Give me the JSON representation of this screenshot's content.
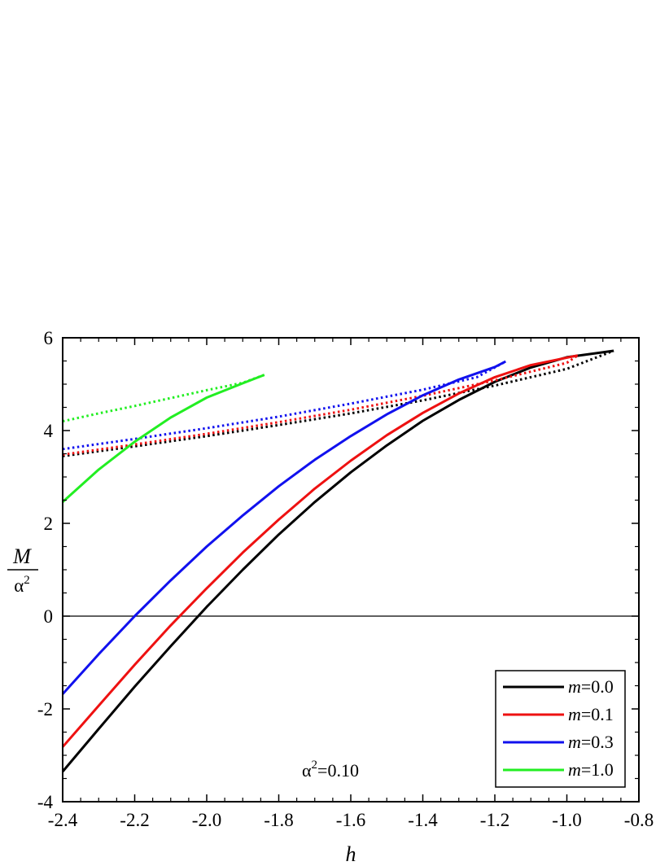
{
  "chart_data": {
    "type": "line",
    "xlabel": "h",
    "ylabel": {
      "numerator": "M",
      "denominator": "α",
      "denominator_sup": "2"
    },
    "xlim": [
      -2.4,
      -0.8
    ],
    "ylim": [
      -4,
      6
    ],
    "xticks": [
      -2.4,
      -2.2,
      -2.0,
      -1.8,
      -1.6,
      -1.4,
      -1.2,
      -1.0,
      -0.8
    ],
    "xtick_labels": [
      "-2.4",
      "-2.2",
      "-2.0",
      "-1.8",
      "-1.6",
      "-1.4",
      "-1.2",
      "-1.0",
      "-0.8"
    ],
    "yticks": [
      -4,
      -2,
      0,
      2,
      4,
      6
    ],
    "ytick_labels": [
      "-4",
      "-2",
      "0",
      "2",
      "4",
      "6"
    ],
    "reference_line_y": 0,
    "annotation": {
      "prefix": "α",
      "sup": "2",
      "suffix": "=0.10"
    },
    "legend_position": "bottom-right",
    "series": [
      {
        "name": "m=0.0",
        "name_italic": "m",
        "name_rest": "=0.0",
        "color": "#000000",
        "solid": [
          [
            -2.4,
            -3.35
          ],
          [
            -2.3,
            -2.43
          ],
          [
            -2.2,
            -1.52
          ],
          [
            -2.1,
            -0.65
          ],
          [
            -2.0,
            0.2
          ],
          [
            -1.9,
            1.0
          ],
          [
            -1.8,
            1.76
          ],
          [
            -1.7,
            2.46
          ],
          [
            -1.6,
            3.1
          ],
          [
            -1.5,
            3.68
          ],
          [
            -1.4,
            4.21
          ],
          [
            -1.3,
            4.66
          ],
          [
            -1.2,
            5.05
          ],
          [
            -1.1,
            5.36
          ],
          [
            -1.0,
            5.58
          ],
          [
            -0.87,
            5.72
          ]
        ],
        "dotted": [
          [
            -2.4,
            3.45
          ],
          [
            -2.2,
            3.66
          ],
          [
            -2.0,
            3.88
          ],
          [
            -1.8,
            4.12
          ],
          [
            -1.6,
            4.37
          ],
          [
            -1.4,
            4.65
          ],
          [
            -1.2,
            4.97
          ],
          [
            -1.0,
            5.33
          ],
          [
            -0.87,
            5.72
          ]
        ]
      },
      {
        "name": "m=0.1",
        "name_italic": "m",
        "name_rest": "=0.1",
        "color": "#ee1111",
        "solid": [
          [
            -2.4,
            -2.82
          ],
          [
            -2.3,
            -1.93
          ],
          [
            -2.2,
            -1.05
          ],
          [
            -2.1,
            -0.2
          ],
          [
            -2.0,
            0.6
          ],
          [
            -1.9,
            1.37
          ],
          [
            -1.8,
            2.08
          ],
          [
            -1.7,
            2.75
          ],
          [
            -1.6,
            3.35
          ],
          [
            -1.5,
            3.9
          ],
          [
            -1.4,
            4.38
          ],
          [
            -1.3,
            4.8
          ],
          [
            -1.2,
            5.15
          ],
          [
            -1.1,
            5.41
          ],
          [
            -0.97,
            5.62
          ]
        ],
        "dotted": [
          [
            -2.4,
            3.48
          ],
          [
            -2.2,
            3.7
          ],
          [
            -2.0,
            3.93
          ],
          [
            -1.8,
            4.18
          ],
          [
            -1.6,
            4.45
          ],
          [
            -1.4,
            4.75
          ],
          [
            -1.2,
            5.08
          ],
          [
            -1.0,
            5.46
          ],
          [
            -0.97,
            5.62
          ]
        ]
      },
      {
        "name": "m=0.3",
        "name_italic": "m",
        "name_rest": "=0.3",
        "color": "#1111ee",
        "solid": [
          [
            -2.4,
            -1.68
          ],
          [
            -2.3,
            -0.82
          ],
          [
            -2.2,
            0.0
          ],
          [
            -2.1,
            0.77
          ],
          [
            -2.0,
            1.5
          ],
          [
            -1.9,
            2.17
          ],
          [
            -1.8,
            2.8
          ],
          [
            -1.7,
            3.37
          ],
          [
            -1.6,
            3.88
          ],
          [
            -1.5,
            4.35
          ],
          [
            -1.4,
            4.76
          ],
          [
            -1.3,
            5.1
          ],
          [
            -1.2,
            5.37
          ],
          [
            -1.17,
            5.49
          ]
        ],
        "dotted": [
          [
            -2.4,
            3.6
          ],
          [
            -2.2,
            3.82
          ],
          [
            -2.0,
            4.05
          ],
          [
            -1.8,
            4.3
          ],
          [
            -1.6,
            4.58
          ],
          [
            -1.4,
            4.88
          ],
          [
            -1.25,
            5.15
          ],
          [
            -1.17,
            5.49
          ]
        ]
      },
      {
        "name": "m=1.0",
        "name_italic": "m",
        "name_rest": "=1.0",
        "color": "#22ee22",
        "solid": [
          [
            -2.4,
            2.46
          ],
          [
            -2.3,
            3.16
          ],
          [
            -2.2,
            3.76
          ],
          [
            -2.1,
            4.28
          ],
          [
            -2.0,
            4.71
          ],
          [
            -1.9,
            5.02
          ],
          [
            -1.84,
            5.2
          ]
        ],
        "dotted": [
          [
            -2.4,
            4.2
          ],
          [
            -2.3,
            4.37
          ],
          [
            -2.2,
            4.53
          ],
          [
            -2.1,
            4.7
          ],
          [
            -2.0,
            4.87
          ],
          [
            -1.9,
            5.03
          ],
          [
            -1.84,
            5.2
          ]
        ]
      }
    ]
  }
}
